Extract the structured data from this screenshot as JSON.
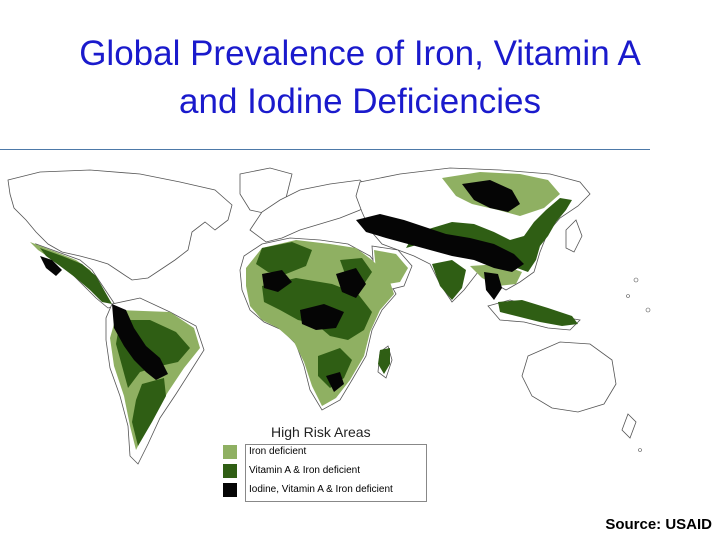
{
  "title": {
    "line1": "Global Prevalence of Iron, Vitamin A",
    "line2": "and Iodine Deficiencies"
  },
  "legend": {
    "title": "High Risk Areas",
    "items": [
      {
        "label": "Iron deficient",
        "color": "#8fb062"
      },
      {
        "label": "Vitamin A & Iron deficient",
        "color": "#2f5e14"
      },
      {
        "label": "Iodine, Vitamin A & Iron deficient",
        "color": "#050505"
      }
    ]
  },
  "source": "Source: USAID",
  "colors": {
    "title": "#1a1acc",
    "rule": "#4d79a8",
    "outline": "#555555"
  }
}
